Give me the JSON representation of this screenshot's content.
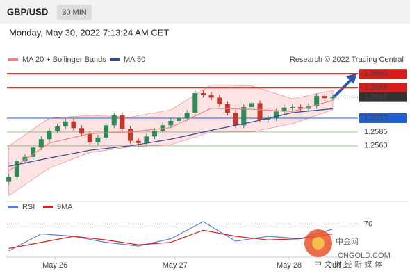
{
  "header": {
    "symbol": "GBP/USD",
    "timeframe": "30 MIN",
    "timestamp": "Monday, May 30, 2022 7:13:24 AM CET"
  },
  "credit": "Research © 2022 Trading Central",
  "watermark": {
    "name": "中金网",
    "site": "CNGOLD.COM",
    "slogan": "中 文 财 经 新 媒 体"
  },
  "chart_data": [
    {
      "type": "candlestick",
      "up_color": "#2e8b57",
      "down_color": "#c0392b",
      "xlim": [
        -0.4,
        40.6
      ],
      "ylim": [
        1.2472,
        1.2704
      ],
      "xticks": [
        {
          "value": 5.7,
          "label": "May 26"
        },
        {
          "value": 20.5,
          "label": "May 27"
        },
        {
          "value": 34.6,
          "label": "May 28"
        },
        {
          "value": 40.6,
          "label": "Jun 1"
        }
      ],
      "open": [
        1.2495,
        1.2504,
        1.2532,
        1.254,
        1.2557,
        1.2572,
        1.2587,
        1.2595,
        1.2604,
        1.2592,
        1.2582,
        1.2566,
        1.2575,
        1.2597,
        1.2615,
        1.2591,
        1.2569,
        1.2565,
        1.2577,
        1.2587,
        1.2597,
        1.2605,
        1.261,
        1.262,
        1.2655,
        1.2652,
        1.2647,
        1.2635,
        1.262,
        1.2597,
        1.263,
        1.2637,
        1.2607,
        1.261,
        1.2622,
        1.2629,
        1.263,
        1.2627,
        1.2632,
        1.265,
        1.2646
      ],
      "high": [
        1.2509,
        1.2537,
        1.2545,
        1.2562,
        1.2577,
        1.2592,
        1.26,
        1.2609,
        1.2609,
        1.2597,
        1.2587,
        1.258,
        1.2602,
        1.262,
        1.262,
        1.2596,
        1.2574,
        1.2582,
        1.2592,
        1.2602,
        1.261,
        1.2615,
        1.2625,
        1.266,
        1.266,
        1.2657,
        1.2652,
        1.264,
        1.2625,
        1.2635,
        1.2642,
        1.2642,
        1.2615,
        1.2627,
        1.2634,
        1.2635,
        1.2635,
        1.2637,
        1.2655,
        1.2655,
        1.2653
      ],
      "low": [
        1.249,
        1.2499,
        1.2527,
        1.2535,
        1.2552,
        1.2567,
        1.2582,
        1.259,
        1.2587,
        1.2577,
        1.2561,
        1.2561,
        1.257,
        1.2592,
        1.2586,
        1.2564,
        1.256,
        1.256,
        1.2572,
        1.2582,
        1.2592,
        1.26,
        1.2605,
        1.2615,
        1.2647,
        1.2642,
        1.263,
        1.2615,
        1.2592,
        1.2592,
        1.2625,
        1.2602,
        1.2602,
        1.2605,
        1.2617,
        1.2624,
        1.2622,
        1.2622,
        1.2627,
        1.2641,
        1.2641
      ],
      "close": [
        1.2504,
        1.2532,
        1.254,
        1.2557,
        1.2572,
        1.2587,
        1.2595,
        1.2604,
        1.2592,
        1.2582,
        1.2566,
        1.2575,
        1.2597,
        1.2615,
        1.2591,
        1.2569,
        1.2565,
        1.2577,
        1.2587,
        1.2597,
        1.2605,
        1.261,
        1.262,
        1.2655,
        1.2652,
        1.2647,
        1.2635,
        1.262,
        1.2597,
        1.263,
        1.2637,
        1.2607,
        1.261,
        1.2622,
        1.2629,
        1.263,
        1.2627,
        1.2632,
        1.265,
        1.2646,
        1.2648
      ],
      "series": [
        {
          "name": "MA 20 + Bollinger Bands",
          "color": "#f08080",
          "band_color": "#fde3e3",
          "x": [
            0,
            5,
            10,
            15,
            20,
            25,
            30,
            35,
            40
          ],
          "values": [
            1.2515,
            1.2565,
            1.2582,
            1.2585,
            1.2593,
            1.2628,
            1.2626,
            1.2622,
            1.2642
          ],
          "upper": [
            1.256,
            1.261,
            1.2615,
            1.2612,
            1.2625,
            1.267,
            1.2668,
            1.2645,
            1.266
          ],
          "lower": [
            1.247,
            1.252,
            1.2548,
            1.2558,
            1.2562,
            1.2585,
            1.2585,
            1.26,
            1.2625
          ]
        },
        {
          "name": "MA 50",
          "color": "#2a4d8f",
          "x": [
            0,
            5,
            10,
            15,
            20,
            25,
            30,
            35,
            40
          ],
          "values": [
            1.2523,
            1.2538,
            1.2552,
            1.256,
            1.2572,
            1.2588,
            1.2603,
            1.262,
            1.2627
          ]
        }
      ],
      "levels": [
        {
          "value": 1.269,
          "label": "1.2690",
          "color": "#d91c1c",
          "style": "box",
          "line": "solid"
        },
        {
          "value": 1.2665,
          "label": "1.2665",
          "color": "#d91c1c",
          "style": "box",
          "line": "solid"
        },
        {
          "value": 1.2648,
          "label": "1.2648",
          "color": "#333333",
          "style": "box",
          "line": "dotted"
        },
        {
          "value": 1.261,
          "label": "1.2610",
          "color": "#1f5fd1",
          "style": "box",
          "line": "solid"
        },
        {
          "value": 1.2585,
          "label": "1.2585",
          "color": "#3a8a2e",
          "style": "text",
          "line": "solid"
        },
        {
          "value": 1.256,
          "label": "1.2560",
          "color": "#3a8a2e",
          "style": "text",
          "line": "solid"
        }
      ]
    },
    {
      "type": "line",
      "xlim": [
        -0.4,
        40.6
      ],
      "ylim": [
        40,
        80
      ],
      "yticks": [
        70
      ],
      "series": [
        {
          "name": "RSI",
          "color": "#5b7fd6",
          "x": [
            0,
            4,
            8,
            12,
            16,
            20,
            24,
            28,
            32,
            36,
            40
          ],
          "values": [
            48,
            62,
            60,
            55,
            52,
            58,
            72,
            56,
            60,
            58,
            66
          ]
        },
        {
          "name": "9MA",
          "color": "#d62020",
          "x": [
            0,
            4,
            8,
            12,
            16,
            20,
            24,
            28,
            32,
            36,
            40
          ],
          "values": [
            50,
            55,
            60,
            57,
            53,
            55,
            65,
            60,
            57,
            58,
            62
          ]
        }
      ]
    }
  ]
}
